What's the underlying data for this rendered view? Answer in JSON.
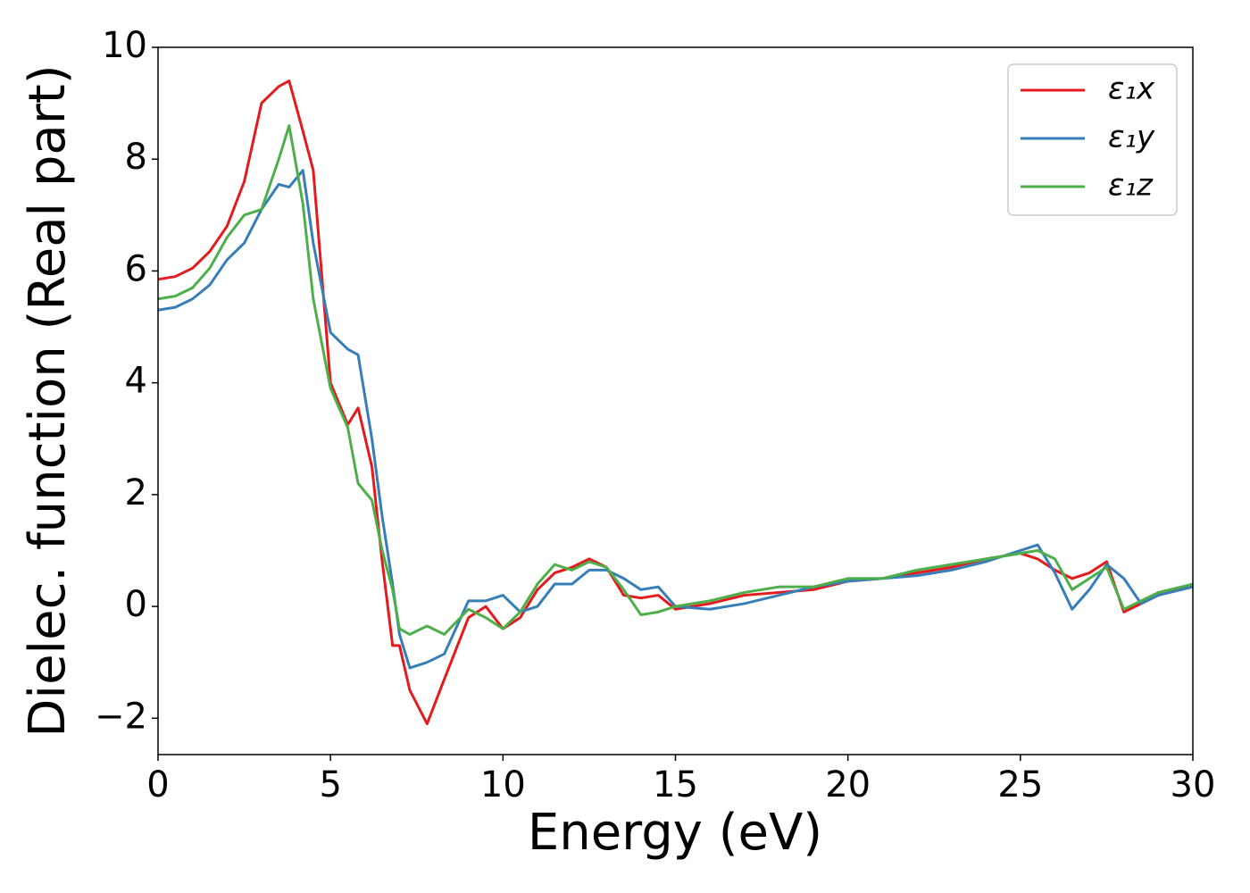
{
  "chart_data": {
    "type": "line",
    "xlabel": "Energy (eV)",
    "ylabel": "Dielec. function (Real part)",
    "x": [
      0,
      0.5,
      1,
      1.5,
      2,
      2.5,
      3,
      3.5,
      3.8,
      4.2,
      4.5,
      5,
      5.5,
      5.8,
      6.2,
      6.5,
      6.8,
      7,
      7.3,
      7.8,
      8.3,
      9,
      9.5,
      10,
      10.5,
      11,
      11.5,
      12,
      12.5,
      13,
      13.5,
      14,
      14.5,
      15,
      16,
      17,
      18,
      19,
      20,
      21,
      22,
      23,
      24,
      25,
      25.5,
      26,
      26.5,
      27,
      27.5,
      28,
      28.5,
      29,
      30
    ],
    "series": [
      {
        "name": "ε₁x",
        "color": "#e41a1c",
        "values": [
          5.85,
          5.9,
          6.05,
          6.35,
          6.8,
          7.6,
          9.0,
          9.3,
          9.4,
          8.5,
          7.8,
          4.0,
          3.25,
          3.55,
          2.5,
          0.8,
          -0.7,
          -0.7,
          -1.5,
          -2.1,
          -1.3,
          -0.2,
          0.0,
          -0.4,
          -0.2,
          0.3,
          0.6,
          0.7,
          0.85,
          0.7,
          0.2,
          0.15,
          0.2,
          -0.05,
          0.05,
          0.2,
          0.25,
          0.3,
          0.45,
          0.5,
          0.6,
          0.7,
          0.85,
          0.95,
          0.85,
          0.65,
          0.5,
          0.6,
          0.8,
          -0.1,
          0.05,
          0.2,
          0.4
        ]
      },
      {
        "name": "ε₁y",
        "color": "#377eb8",
        "values": [
          5.3,
          5.35,
          5.5,
          5.75,
          6.2,
          6.5,
          7.1,
          7.55,
          7.5,
          7.8,
          6.5,
          4.9,
          4.6,
          4.5,
          3.0,
          1.6,
          0.4,
          -0.5,
          -1.1,
          -1.0,
          -0.85,
          0.1,
          0.1,
          0.2,
          -0.1,
          0.0,
          0.4,
          0.4,
          0.65,
          0.65,
          0.5,
          0.3,
          0.35,
          0.0,
          -0.05,
          0.05,
          0.2,
          0.35,
          0.45,
          0.5,
          0.55,
          0.65,
          0.8,
          1.0,
          1.1,
          0.6,
          -0.05,
          0.3,
          0.75,
          0.5,
          0.05,
          0.2,
          0.35
        ]
      },
      {
        "name": "ε₁z",
        "color": "#4daf4a",
        "values": [
          5.5,
          5.55,
          5.7,
          6.05,
          6.6,
          7.0,
          7.1,
          8.0,
          8.6,
          7.2,
          5.5,
          3.9,
          3.2,
          2.2,
          1.9,
          1.0,
          0.3,
          -0.4,
          -0.5,
          -0.35,
          -0.5,
          -0.05,
          -0.2,
          -0.4,
          -0.1,
          0.4,
          0.75,
          0.65,
          0.8,
          0.7,
          0.3,
          -0.15,
          -0.1,
          0.0,
          0.1,
          0.25,
          0.35,
          0.35,
          0.5,
          0.5,
          0.65,
          0.75,
          0.85,
          0.95,
          1.0,
          0.85,
          0.3,
          0.5,
          0.7,
          -0.05,
          0.1,
          0.25,
          0.4
        ]
      }
    ],
    "xlim": [
      0,
      30
    ],
    "xticks": [
      0,
      5,
      10,
      15,
      20,
      25,
      30
    ],
    "ylim": [
      -2.65,
      10
    ],
    "yticks": [
      {
        "value": -2,
        "label": "−2"
      },
      0,
      2,
      4,
      6,
      8,
      10
    ],
    "grid": false,
    "legend": "upper right"
  }
}
